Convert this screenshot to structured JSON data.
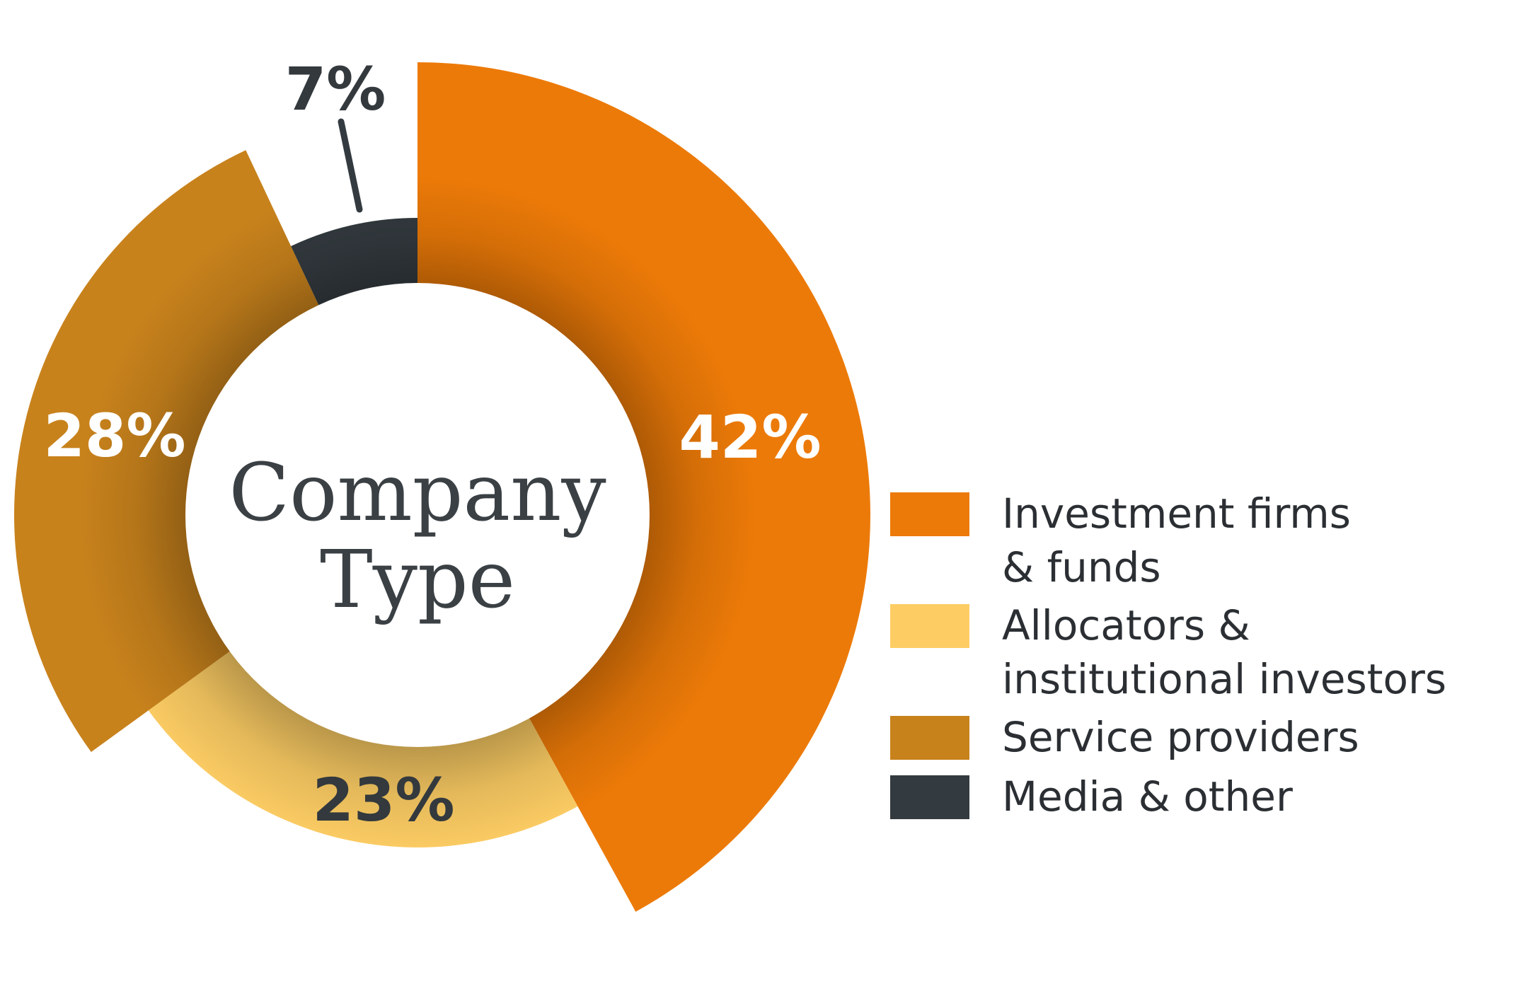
{
  "chart_data": {
    "type": "pie",
    "title": "Company Type",
    "title_lines": [
      "Company",
      "Type"
    ],
    "slices": [
      {
        "label": "Investment firms & funds",
        "label_lines": [
          "Investment firms",
          "& funds"
        ],
        "value": 42,
        "display": "42%",
        "color": "#ec7a08",
        "label_color": "#ffffff"
      },
      {
        "label": "Allocators & institutional investors",
        "label_lines": [
          "Allocators &",
          "institutional investors"
        ],
        "value": 23,
        "display": "23%",
        "color": "#fdcd64",
        "label_color": "#33393d"
      },
      {
        "label": "Service providers",
        "label_lines": [
          "Service providers"
        ],
        "value": 28,
        "display": "28%",
        "color": "#c8821c",
        "label_color": "#ffffff"
      },
      {
        "label": "Media & other",
        "label_lines": [
          "Media & other"
        ],
        "value": 7,
        "display": "7%",
        "color": "#343b40",
        "label_color": "#33393d"
      }
    ]
  }
}
